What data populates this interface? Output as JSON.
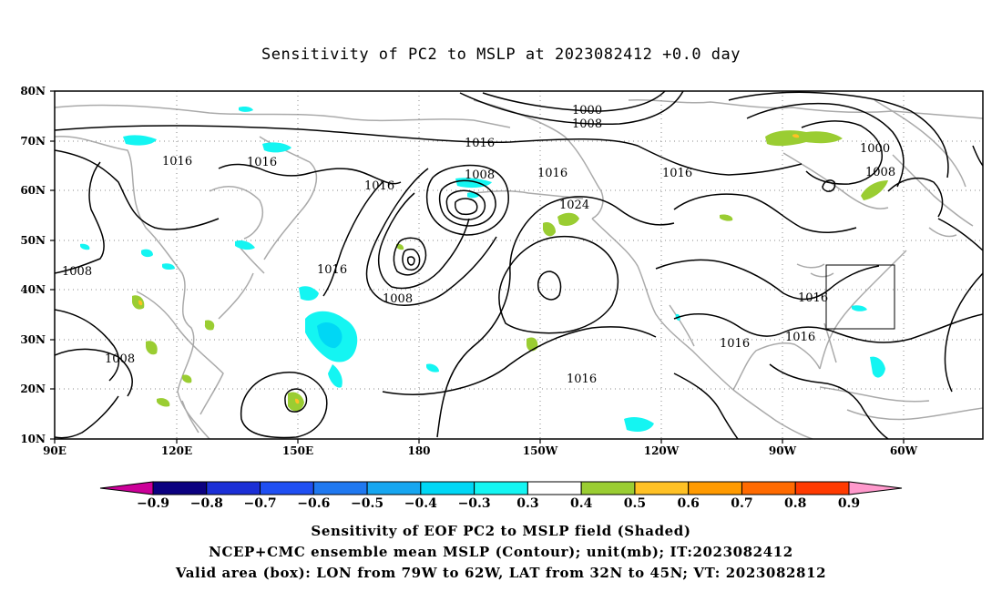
{
  "title": "Sensitivity of PC2 to MSLP at 2023082412 +0.0 day",
  "lat_labels": [
    "80N",
    "70N",
    "60N",
    "50N",
    "40N",
    "30N",
    "20N",
    "10N"
  ],
  "lon_labels": [
    "90E",
    "120E",
    "150E",
    "180",
    "150W",
    "120W",
    "90W",
    "60W"
  ],
  "contour_labels": [
    "1000",
    "1008",
    "1016",
    "1016",
    "1016",
    "1016",
    "1008",
    "1016",
    "1016",
    "1024",
    "1000",
    "1008",
    "1016",
    "1008",
    "1008",
    "1008",
    "1016",
    "1016",
    "1016",
    "1016"
  ],
  "colorbar": {
    "levels": [
      "-0.9",
      "-0.8",
      "-0.7",
      "-0.6",
      "-0.5",
      "-0.4",
      "-0.3",
      "0.3",
      "0.4",
      "0.5",
      "0.6",
      "0.7",
      "0.8",
      "0.9"
    ],
    "colors": [
      "#0b0080",
      "#1b2fd6",
      "#1f4ff2",
      "#1f78f0",
      "#16a6f0",
      "#00d7f5",
      "#14f5f2",
      "#ffffff",
      "#9acd32",
      "#ffc125",
      "#ff9a00",
      "#ff6a00",
      "#ff3a00",
      "#ff0000"
    ],
    "end_low_color": "#cc0099",
    "end_high_color": "#ff99cc"
  },
  "colors": {
    "contour": "#000000",
    "coastline": "#aaaaaa",
    "positive_shade": "#9acd32",
    "negative_shade": "#14f5f2"
  },
  "valid_box": {
    "lon_from": "79W",
    "lon_to": "62W",
    "lat_from": "32N",
    "lat_to": "45N"
  },
  "captions": {
    "line1": "Sensitivity of EOF PC2 to MSLP field (Shaded)",
    "line2": "NCEP+CMC ensemble mean MSLP (Contour); unit(mb); IT:2023082412",
    "line3": "Valid area (box): LON from 79W to 62W, LAT from 32N to 45N; VT: 2023082812"
  }
}
